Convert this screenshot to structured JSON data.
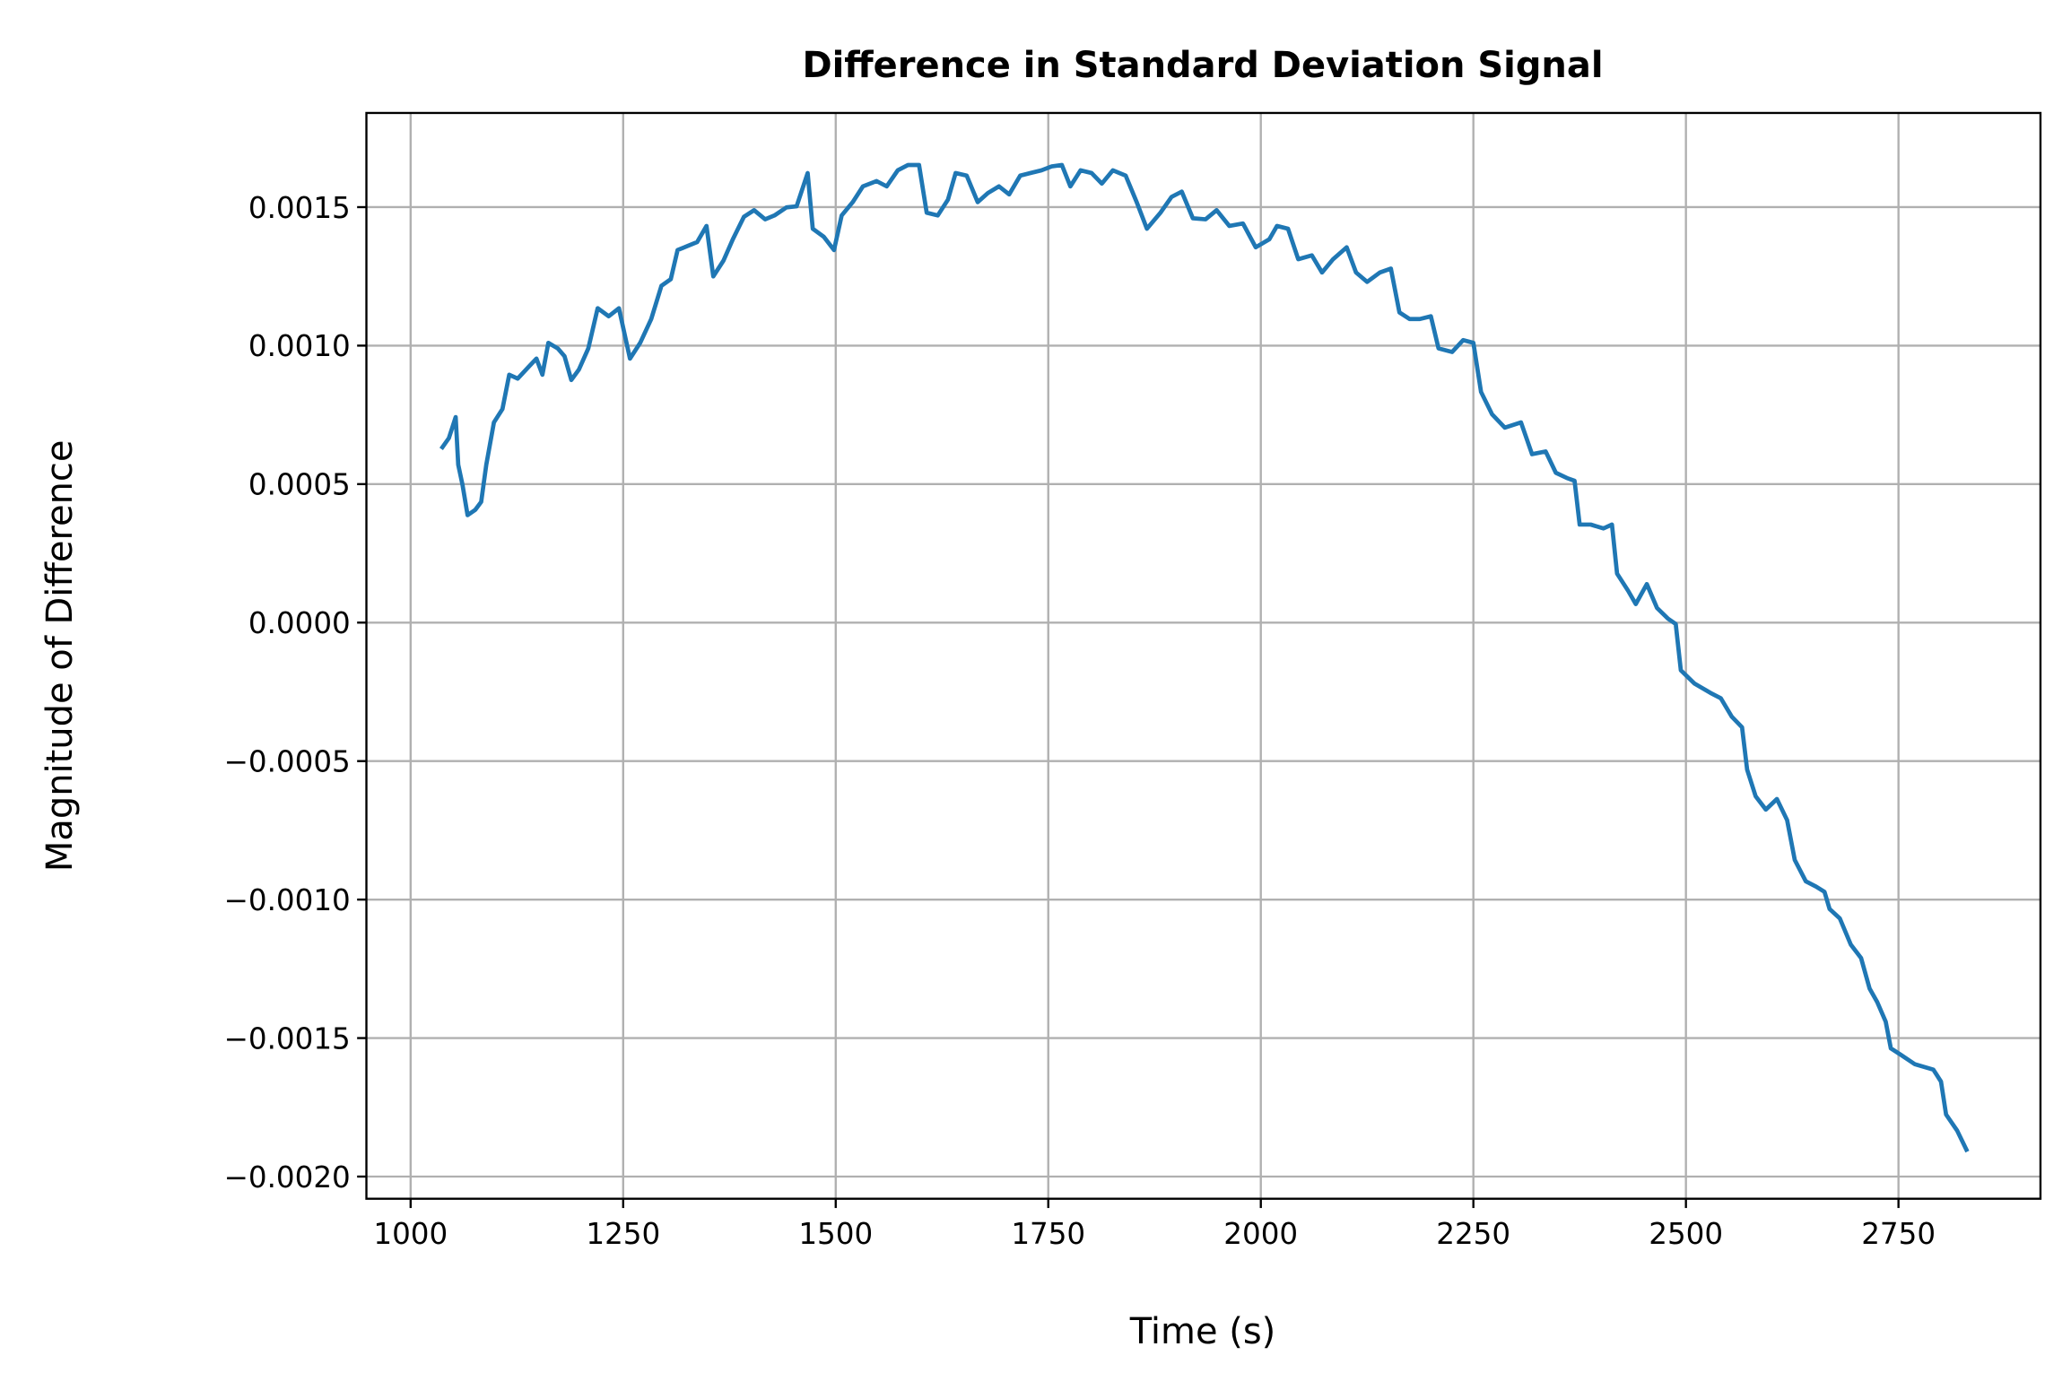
{
  "chart_data": {
    "type": "line",
    "title": "Difference in Standard Deviation Signal",
    "xlabel": "Time (s)",
    "ylabel": "Magnitude of Difference",
    "grid": true,
    "xlim": [
      948,
      2917
    ],
    "ylim": [
      -0.00208,
      0.00184
    ],
    "xticks": [
      1000,
      1250,
      1500,
      1750,
      2000,
      2250,
      2500,
      2750
    ],
    "yticks": [
      {
        "value": -0.002,
        "label": "−0.0020"
      },
      {
        "value": -0.0015,
        "label": "−0.0015"
      },
      {
        "value": -0.001,
        "label": "−0.0010"
      },
      {
        "value": -0.0005,
        "label": "−0.0005"
      },
      {
        "value": 0,
        "label": "0.0000"
      },
      0.0005,
      {
        "value": 0.001,
        "label": "0.0010"
      },
      0.0015
    ],
    "x": [
      1036,
      1045,
      1053,
      1056,
      1061,
      1067,
      1076,
      1083,
      1089,
      1098,
      1108,
      1116,
      1126,
      1139,
      1148,
      1155,
      1162,
      1173,
      1181,
      1189,
      1198,
      1209,
      1220,
      1233,
      1245,
      1258,
      1270,
      1283,
      1295,
      1306,
      1314,
      1326,
      1337,
      1348,
      1356,
      1368,
      1379,
      1392,
      1404,
      1417,
      1428,
      1442,
      1454,
      1467,
      1473,
      1486,
      1498,
      1507,
      1520,
      1532,
      1548,
      1560,
      1573,
      1585,
      1598,
      1607,
      1620,
      1632,
      1641,
      1654,
      1667,
      1679,
      1692,
      1704,
      1717,
      1729,
      1742,
      1754,
      1766,
      1776,
      1788,
      1801,
      1813,
      1826,
      1841,
      1854,
      1866,
      1882,
      1895,
      1907,
      1920,
      1935,
      1948,
      1963,
      1979,
      1994,
      2010,
      2019,
      2032,
      2044,
      2060,
      2072,
      2085,
      2101,
      2112,
      2125,
      2140,
      2153,
      2163,
      2175,
      2187,
      2200,
      2209,
      2225,
      2238,
      2250,
      2259,
      2272,
      2287,
      2306,
      2319,
      2335,
      2347,
      2360,
      2369,
      2375,
      2388,
      2403,
      2413,
      2419,
      2432,
      2441,
      2454,
      2466,
      2479,
      2488,
      2494,
      2510,
      2529,
      2541,
      2554,
      2566,
      2572,
      2582,
      2594,
      2607,
      2619,
      2628,
      2641,
      2653,
      2663,
      2669,
      2681,
      2694,
      2706,
      2716,
      2725,
      2735,
      2741,
      2753,
      2769,
      2791,
      2800,
      2806,
      2819,
      2831
    ],
    "series": [
      {
        "name": "Difference",
        "color": "#1f77b4",
        "values": [
          0.000627,
          0.000666,
          0.000742,
          0.00057,
          0.000498,
          0.000388,
          0.000407,
          0.000436,
          0.00057,
          0.000723,
          0.000771,
          0.000895,
          0.000881,
          0.000924,
          0.000953,
          0.000895,
          0.00101,
          0.00099,
          0.000962,
          0.000876,
          0.000914,
          0.00099,
          0.001135,
          0.001106,
          0.001135,
          0.000953,
          0.00101,
          0.001096,
          0.001216,
          0.00124,
          0.001345,
          0.00136,
          0.001374,
          0.001432,
          0.00125,
          0.001307,
          0.001384,
          0.001465,
          0.001489,
          0.001456,
          0.00147,
          0.001499,
          0.001503,
          0.001623,
          0.001422,
          0.001393,
          0.001345,
          0.00147,
          0.001518,
          0.001575,
          0.001594,
          0.001575,
          0.001633,
          0.001652,
          0.001652,
          0.00148,
          0.00147,
          0.001527,
          0.001623,
          0.001614,
          0.001518,
          0.001551,
          0.001575,
          0.001546,
          0.001614,
          0.001623,
          0.001633,
          0.001647,
          0.001652,
          0.001575,
          0.001633,
          0.001623,
          0.001585,
          0.001633,
          0.001614,
          0.001518,
          0.001422,
          0.00148,
          0.001537,
          0.001556,
          0.00146,
          0.001456,
          0.001489,
          0.001432,
          0.001441,
          0.001355,
          0.001384,
          0.001432,
          0.001422,
          0.001312,
          0.001326,
          0.001264,
          0.001312,
          0.001355,
          0.001264,
          0.00123,
          0.001264,
          0.001278,
          0.00112,
          0.001096,
          0.001096,
          0.001106,
          0.00099,
          0.000977,
          0.00102,
          0.00101,
          0.000833,
          0.000752,
          0.000704,
          0.000723,
          0.000608,
          0.000618,
          0.000541,
          0.000522,
          0.000512,
          0.000354,
          0.000354,
          0.00034,
          0.000354,
          0.000177,
          0.000115,
          6.7e-05,
          0.000139,
          5.3e-05,
          1.4e-05,
          -5e-06,
          -0.000172,
          -0.00022,
          -0.000254,
          -0.000273,
          -0.00034,
          -0.000378,
          -0.000531,
          -0.000627,
          -0.000675,
          -0.000637,
          -0.000713,
          -0.000857,
          -0.000934,
          -0.000953,
          -0.000972,
          -0.001034,
          -0.001068,
          -0.001163,
          -0.001211,
          -0.001321,
          -0.00137,
          -0.001441,
          -0.001537,
          -0.001561,
          -0.001594,
          -0.001614,
          -0.001657,
          -0.001776,
          -0.001834,
          -0.00191
        ]
      }
    ]
  }
}
